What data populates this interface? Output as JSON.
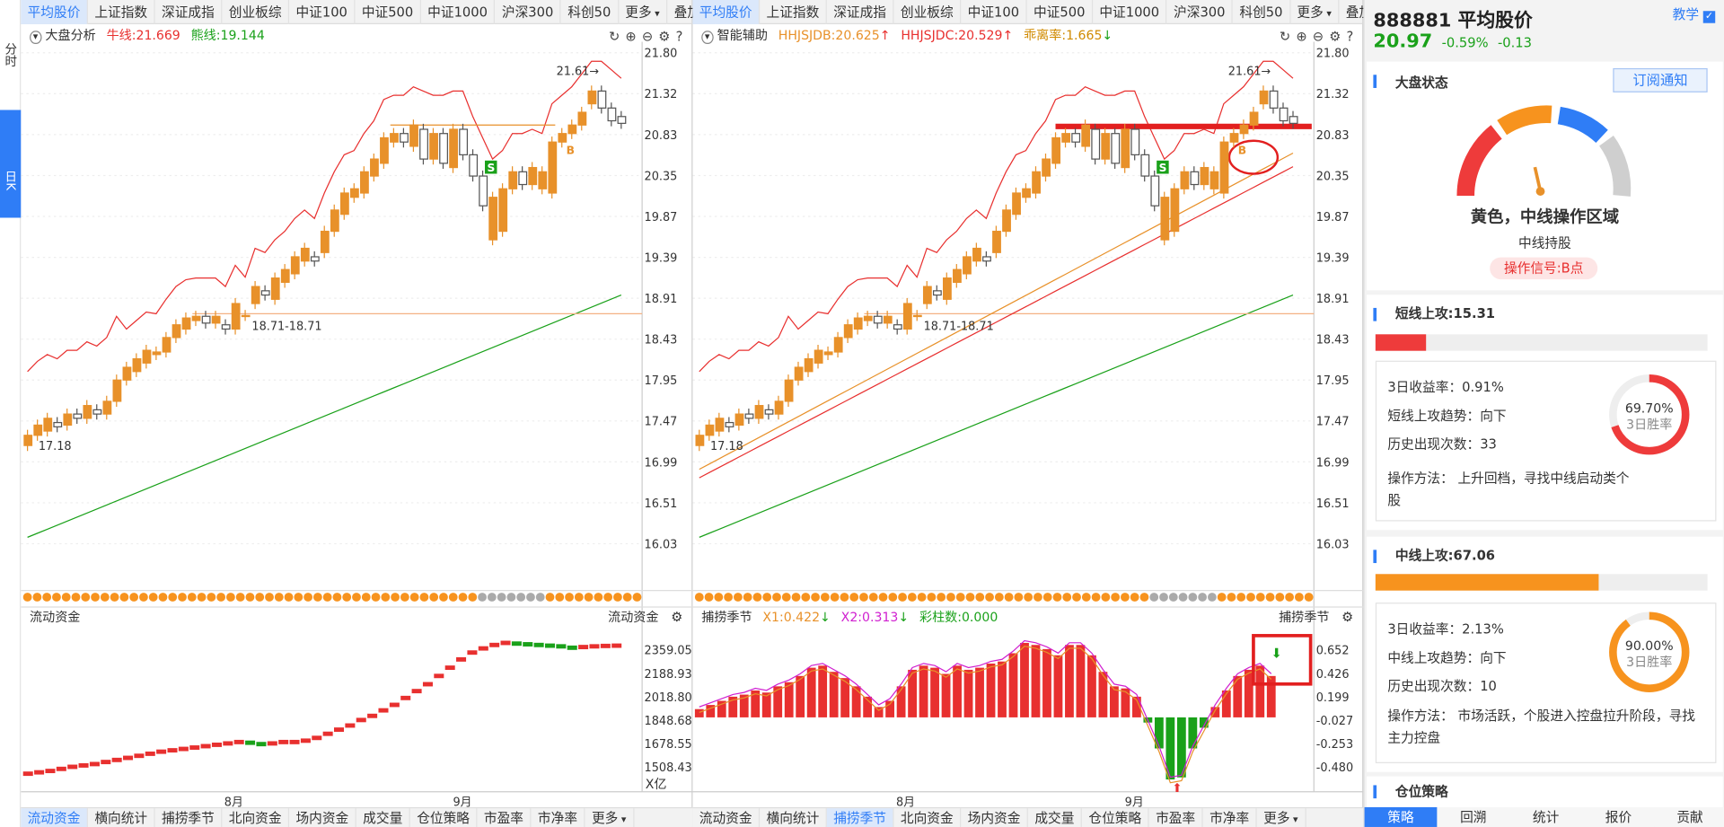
{
  "left_toolbar": {
    "fen": "分时",
    "rik": "日K"
  },
  "tabs_top": [
    "平均股价",
    "上证指数",
    "深证成指",
    "创业板综",
    "中证100",
    "中证500",
    "中证1000",
    "沪深300",
    "科创50",
    "更多",
    "叠加"
  ],
  "tabs_bottom_left": [
    "流动资金",
    "横向统计",
    "捕捞季节",
    "北向资金",
    "场内资金",
    "成交量",
    "仓位策略",
    "市盈率",
    "市净率",
    "更多"
  ],
  "tabs_bottom_right": [
    "流动资金",
    "横向统计",
    "捕捞季节",
    "北向资金",
    "场内资金",
    "成交量",
    "仓位策略",
    "市盈率",
    "市净率",
    "更多"
  ],
  "left_panel": {
    "indicator_name": "大盘分析",
    "niu": "牛线:21.669",
    "xiong": "熊线:19.144",
    "sub_name": "流动资金",
    "sub_name_right": "流动资金",
    "unit": "X亿",
    "labels": {
      "high": "21.61",
      "low": "17.18",
      "mid": "18.71-18.71"
    }
  },
  "right_panel": {
    "indicator_name": "智能辅助",
    "jdb": "HHJSJDB:20.625",
    "jdc": "HHJSJDC:20.529",
    "deviation": "乖离率:1.665",
    "sub_name": "捕捞季节",
    "sub_name_right": "捕捞季节",
    "x1": "X1:0.422",
    "x2": "X2:0.313",
    "caizhu": "彩柱数:0.000",
    "labels": {
      "high": "21.61",
      "low": "17.18",
      "mid": "18.71-18.71"
    }
  },
  "price_axis": [
    "21.80",
    "21.32",
    "20.83",
    "20.35",
    "19.87",
    "19.39",
    "18.91",
    "18.43",
    "17.95",
    "17.47",
    "16.99",
    "16.51",
    "16.03"
  ],
  "fund_axis": [
    "2359.05",
    "2188.93",
    "2018.80",
    "1848.68",
    "1678.55",
    "1508.43"
  ],
  "season_axis": [
    "0.652",
    "0.426",
    "0.199",
    "-0.027",
    "-0.253",
    "-0.480"
  ],
  "month_labels": [
    "8月",
    "9月"
  ],
  "stock": {
    "code_name": "888881 平均股价",
    "price": "20.97",
    "change_pct": "-0.59%",
    "change": "-0.13",
    "teach": "教学"
  },
  "market": {
    "title": "大盘状态",
    "subscribe": "订阅通知",
    "status": "黄色，中线操作区域",
    "sub": "中线持股",
    "signal": "操作信号:B点"
  },
  "short": {
    "title": "短线上攻:15.31",
    "ret_label": "3日收益率：",
    "ret": "0.91%",
    "trend_label": "短线上攻趋势：",
    "trend": "向下",
    "hist_label": "历史出现次数：",
    "hist": "33",
    "method": "操作方法：  上升回档，寻找中线启动类个股",
    "win": "69.70%",
    "win_label": "3日胜率",
    "fill": 0.1531,
    "win_value": 0.697
  },
  "mid": {
    "title": "中线上攻:67.06",
    "ret_label": "3日收益率：",
    "ret": "2.13%",
    "trend_label": "中线上攻趋势：",
    "trend": "向下",
    "hist_label": "历史出现次数：",
    "hist": "10",
    "method": "操作方法：  市场活跃，个股进入控盘拉升阶段，寻找主力控盘",
    "win": "90.00%",
    "win_label": "3日胜率",
    "fill": 0.6706,
    "win_value": 0.9
  },
  "position": {
    "title": "仓位策略"
  },
  "bottom_tabs": [
    "策略",
    "回溯",
    "统计",
    "报价",
    "贡献"
  ],
  "colors": {
    "up": "#e8912a",
    "down": "#ffffff",
    "red": "#e8302f",
    "green": "#1aa11a",
    "blue": "#2f7df6",
    "orange": "#f7931e"
  }
}
